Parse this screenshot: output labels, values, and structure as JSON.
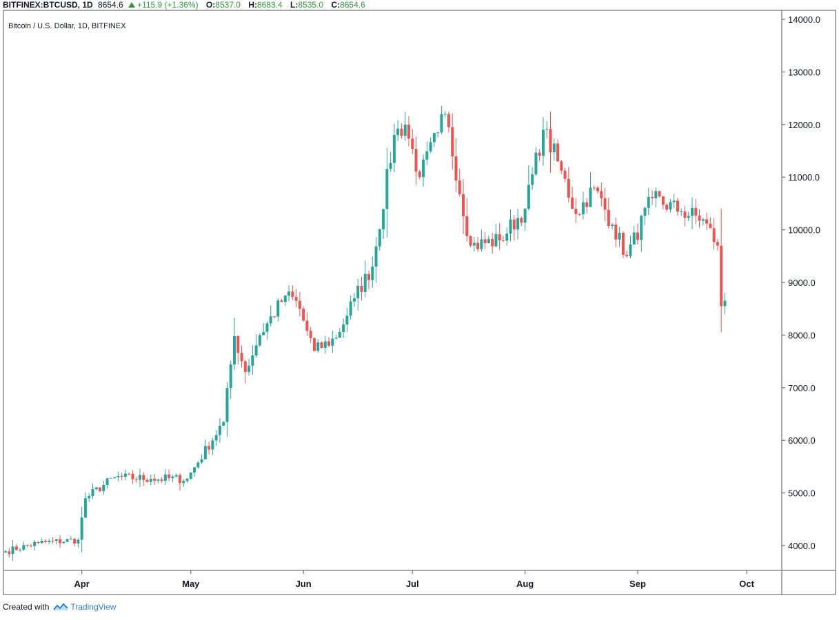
{
  "header": {
    "symbol": "BITFINEX:BTCUSD, 1D",
    "last": "8654.6",
    "change": "+115.9 (+1.36%)",
    "o_label": "O:",
    "o_value": "8537.0",
    "h_label": "H:",
    "h_value": "8683.4",
    "l_label": "L:",
    "l_value": "8535.0",
    "c_label": "C:",
    "c_value": "8654.6",
    "up_icon": "triangle-up-icon"
  },
  "footer": {
    "created_with": "Created with",
    "logo_icon": "tradingview-logo-icon",
    "brand": "TradingView"
  },
  "colors": {
    "up": "#26a69a",
    "down": "#ef5350",
    "axis": "#787b86",
    "border": "#555555"
  },
  "chart_data": {
    "type": "candlestick",
    "title": "Bitcoin / U.S. Dollar, 1D, BITFINEX",
    "ylim": [
      3500,
      14000
    ],
    "yticks": [
      "4000.0",
      "5000.0",
      "6000.0",
      "7000.0",
      "8000.0",
      "9000.0",
      "10000.0",
      "11000.0",
      "12000.0",
      "13000.0",
      "14000.0"
    ],
    "xlabels": [
      "Apr",
      "May",
      "Jun",
      "Jul",
      "Aug",
      "Sep",
      "Oct"
    ],
    "x_start": "2019-03-11",
    "x_end": "2019-10-02",
    "grid": false,
    "close_series": {
      "dates": [
        "2019-03-11",
        "2019-03-20",
        "2019-03-31",
        "2019-04-02",
        "2019-04-10",
        "2019-04-20",
        "2019-04-30",
        "2019-05-10",
        "2019-05-13",
        "2019-05-16",
        "2019-05-20",
        "2019-05-27",
        "2019-05-30",
        "2019-06-04",
        "2019-06-10",
        "2019-06-15",
        "2019-06-20",
        "2019-06-26",
        "2019-06-29",
        "2019-07-03",
        "2019-07-08",
        "2019-07-10",
        "2019-07-17",
        "2019-07-25",
        "2019-08-01",
        "2019-08-06",
        "2019-08-10",
        "2019-08-15",
        "2019-08-20",
        "2019-08-25",
        "2019-08-29",
        "2019-09-05",
        "2019-09-13",
        "2019-09-19",
        "2019-09-23",
        "2019-09-24",
        "2019-09-25"
      ],
      "close": [
        3890,
        4050,
        4110,
        4900,
        5300,
        5270,
        5270,
        6350,
        7980,
        7300,
        8000,
        8750,
        8650,
        7700,
        7950,
        8700,
        9300,
        11800,
        12000,
        11000,
        11850,
        12200,
        9700,
        9800,
        10400,
        11900,
        11300,
        10300,
        10800,
        10100,
        9500,
        10600,
        10350,
        10200,
        9700,
        8550,
        8650
      ]
    },
    "last_close": 8654.6
  }
}
